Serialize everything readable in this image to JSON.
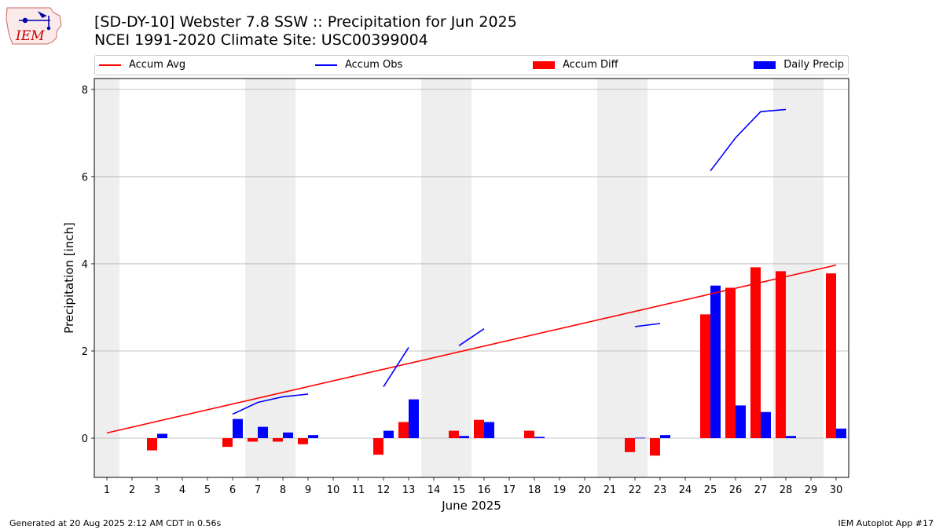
{
  "header": {
    "title_line1": "[SD-DY-10] Webster 7.8 SSW :: Precipitation for Jun 2025",
    "title_line2": "NCEI 1991-2020 Climate Site: USC00399004"
  },
  "logo": {
    "text": "IEM",
    "color": "#cc0000"
  },
  "footer": {
    "left": "Generated at 20 Aug 2025 2:12 AM CDT in 0.56s",
    "right": "IEM Autoplot App #17"
  },
  "legend": [
    {
      "label": "Accum Avg",
      "kind": "line",
      "color": "#ff0000"
    },
    {
      "label": "Accum Obs",
      "kind": "line",
      "color": "#0000ff"
    },
    {
      "label": "Accum Diff",
      "kind": "box",
      "color": "#ff0000"
    },
    {
      "label": "Daily Precip",
      "kind": "box",
      "color": "#0000ff"
    }
  ],
  "chart_data": {
    "type": "bar",
    "xlabel": "June 2025",
    "ylabel": "Precipitation [inch]",
    "ylim": [
      -0.9,
      8.25
    ],
    "yticks": [
      0,
      2,
      4,
      6,
      8
    ],
    "days": [
      1,
      2,
      3,
      4,
      5,
      6,
      7,
      8,
      9,
      10,
      11,
      12,
      13,
      14,
      15,
      16,
      17,
      18,
      19,
      20,
      21,
      22,
      23,
      24,
      25,
      26,
      27,
      28,
      29,
      30
    ],
    "weekend_days": [
      1,
      7,
      8,
      14,
      15,
      21,
      22,
      28,
      29
    ],
    "grid": "horizontal",
    "colors": {
      "avg": "#ff0000",
      "obs": "#0000ff",
      "diff": "#ff0000",
      "daily": "#0000ff",
      "weekend": "#eeeeee"
    },
    "accum_avg": {
      "start": [
        1,
        0.12
      ],
      "end": [
        30,
        3.97
      ]
    },
    "accum_obs_segments": [
      [
        [
          6,
          0.55
        ],
        [
          7,
          0.82
        ],
        [
          8,
          0.95
        ],
        [
          9,
          1.01
        ]
      ],
      [
        [
          12,
          1.18
        ],
        [
          13,
          2.08
        ]
      ],
      [
        [
          15,
          2.12
        ],
        [
          16,
          2.51
        ]
      ],
      [
        [
          22,
          2.56
        ],
        [
          23,
          2.63
        ]
      ],
      [
        [
          25,
          6.13
        ],
        [
          26,
          6.89
        ],
        [
          27,
          7.49
        ],
        [
          28,
          7.54
        ]
      ]
    ],
    "daily_precip": [
      {
        "day": 3,
        "value": 0.1
      },
      {
        "day": 6,
        "value": 0.44
      },
      {
        "day": 7,
        "value": 0.26
      },
      {
        "day": 8,
        "value": 0.13
      },
      {
        "day": 9,
        "value": 0.07
      },
      {
        "day": 12,
        "value": 0.17
      },
      {
        "day": 13,
        "value": 0.89
      },
      {
        "day": 15,
        "value": 0.05
      },
      {
        "day": 16,
        "value": 0.37
      },
      {
        "day": 18,
        "value": 0.03
      },
      {
        "day": 22,
        "value": 0.01
      },
      {
        "day": 23,
        "value": 0.07
      },
      {
        "day": 25,
        "value": 3.5
      },
      {
        "day": 26,
        "value": 0.75
      },
      {
        "day": 27,
        "value": 0.6
      },
      {
        "day": 28,
        "value": 0.05
      },
      {
        "day": 30,
        "value": 0.22
      }
    ],
    "accum_diff": [
      {
        "day": 3,
        "value": -0.28
      },
      {
        "day": 6,
        "value": -0.2
      },
      {
        "day": 7,
        "value": -0.08
      },
      {
        "day": 8,
        "value": -0.08
      },
      {
        "day": 9,
        "value": -0.14
      },
      {
        "day": 12,
        "value": -0.38
      },
      {
        "day": 13,
        "value": 0.37
      },
      {
        "day": 15,
        "value": 0.17
      },
      {
        "day": 16,
        "value": 0.42
      },
      {
        "day": 18,
        "value": 0.17
      },
      {
        "day": 22,
        "value": -0.32
      },
      {
        "day": 23,
        "value": -0.4
      },
      {
        "day": 25,
        "value": 2.84
      },
      {
        "day": 26,
        "value": 3.45
      },
      {
        "day": 27,
        "value": 3.92
      },
      {
        "day": 28,
        "value": 3.83
      },
      {
        "day": 30,
        "value": 3.78
      }
    ]
  }
}
